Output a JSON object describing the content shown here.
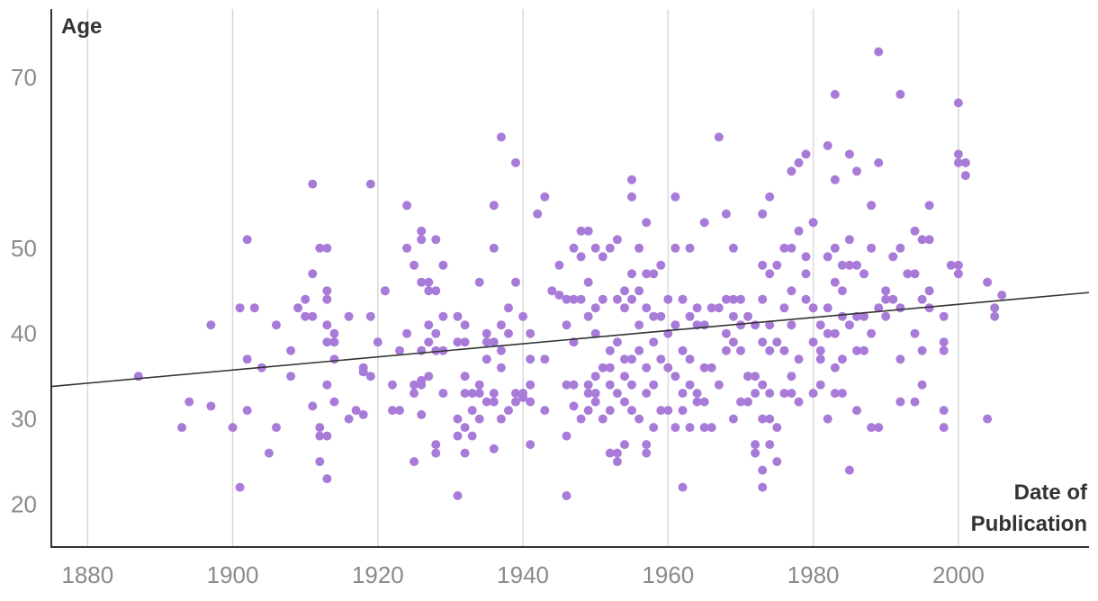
{
  "chart_data": {
    "type": "scatter",
    "title": "",
    "ylabel": "Age",
    "xlabel_lines": [
      "Date of",
      "Publication"
    ],
    "xlim": [
      1875,
      2018
    ],
    "ylim": [
      15,
      78
    ],
    "x_ticks": [
      1880,
      1900,
      1920,
      1940,
      1960,
      1980,
      2000
    ],
    "y_ticks": [
      20,
      30,
      40,
      50,
      70
    ],
    "grid": "vertical",
    "colors": {
      "points": "#a97bd8",
      "trend": "#333333",
      "grid": "#d9d9d9",
      "axis": "#333333"
    },
    "trendline": {
      "start": [
        1875,
        33.8
      ],
      "end": [
        2018,
        44.8
      ]
    },
    "points": [
      [
        1887,
        35
      ],
      [
        1893,
        29
      ],
      [
        1894,
        32
      ],
      [
        1897,
        41
      ],
      [
        1897,
        31.5
      ],
      [
        1900,
        29
      ],
      [
        1901,
        43
      ],
      [
        1901,
        22
      ],
      [
        1902,
        51
      ],
      [
        1902,
        37
      ],
      [
        1902,
        31
      ],
      [
        1903,
        43
      ],
      [
        1904,
        36
      ],
      [
        1905,
        26
      ],
      [
        1906,
        41
      ],
      [
        1906,
        29
      ],
      [
        1908,
        38
      ],
      [
        1908,
        35
      ],
      [
        1909,
        43
      ],
      [
        1910,
        44
      ],
      [
        1910,
        42
      ],
      [
        1911,
        47
      ],
      [
        1911,
        31.5
      ],
      [
        1911,
        57.5
      ],
      [
        1911,
        42
      ],
      [
        1912,
        50
      ],
      [
        1912,
        29
      ],
      [
        1912,
        28
      ],
      [
        1912,
        25
      ],
      [
        1913,
        50
      ],
      [
        1913,
        45
      ],
      [
        1913,
        44
      ],
      [
        1913,
        41
      ],
      [
        1913,
        39
      ],
      [
        1913,
        34
      ],
      [
        1913,
        28
      ],
      [
        1913,
        23
      ],
      [
        1914,
        40
      ],
      [
        1914,
        39
      ],
      [
        1914,
        37
      ],
      [
        1914,
        32
      ],
      [
        1916,
        42
      ],
      [
        1916,
        30
      ],
      [
        1917,
        31
      ],
      [
        1918,
        36
      ],
      [
        1918,
        35.5
      ],
      [
        1918,
        30.5
      ],
      [
        1919,
        57.5
      ],
      [
        1919,
        42
      ],
      [
        1919,
        35
      ],
      [
        1920,
        39
      ],
      [
        1921,
        45
      ],
      [
        1921,
        45
      ],
      [
        1922,
        34
      ],
      [
        1922,
        31
      ],
      [
        1923,
        38
      ],
      [
        1923,
        31
      ],
      [
        1924,
        40
      ],
      [
        1924,
        50
      ],
      [
        1924,
        55
      ],
      [
        1925,
        48
      ],
      [
        1925,
        34
      ],
      [
        1925,
        33
      ],
      [
        1925,
        25
      ],
      [
        1926,
        51
      ],
      [
        1926,
        52
      ],
      [
        1926,
        46
      ],
      [
        1926,
        38
      ],
      [
        1926,
        34.5
      ],
      [
        1926,
        34
      ],
      [
        1926,
        30.5
      ],
      [
        1927,
        41
      ],
      [
        1927,
        39
      ],
      [
        1927,
        46
      ],
      [
        1927,
        45
      ],
      [
        1927,
        35
      ],
      [
        1928,
        51
      ],
      [
        1928,
        45
      ],
      [
        1928,
        40
      ],
      [
        1928,
        38
      ],
      [
        1928,
        27
      ],
      [
        1928,
        26
      ],
      [
        1929,
        48
      ],
      [
        1929,
        42
      ],
      [
        1929,
        38
      ],
      [
        1929,
        33
      ],
      [
        1931,
        42
      ],
      [
        1931,
        39
      ],
      [
        1931,
        30
      ],
      [
        1931,
        28
      ],
      [
        1931,
        21
      ],
      [
        1932,
        41
      ],
      [
        1932,
        39
      ],
      [
        1932,
        35
      ],
      [
        1932,
        33
      ],
      [
        1932,
        29
      ],
      [
        1932,
        26
      ],
      [
        1933,
        33
      ],
      [
        1933,
        31
      ],
      [
        1933,
        28
      ],
      [
        1934,
        46
      ],
      [
        1934,
        34
      ],
      [
        1934,
        33
      ],
      [
        1934,
        30
      ],
      [
        1935,
        40
      ],
      [
        1935,
        39
      ],
      [
        1935,
        37
      ],
      [
        1935,
        32
      ],
      [
        1936,
        55
      ],
      [
        1936,
        50
      ],
      [
        1936,
        39
      ],
      [
        1936,
        33
      ],
      [
        1936,
        32
      ],
      [
        1936,
        26.5
      ],
      [
        1937,
        63
      ],
      [
        1937,
        41
      ],
      [
        1937,
        38
      ],
      [
        1937,
        36
      ],
      [
        1937,
        30
      ],
      [
        1938,
        43
      ],
      [
        1938,
        40
      ],
      [
        1938,
        31
      ],
      [
        1939,
        60
      ],
      [
        1939,
        46
      ],
      [
        1939,
        33
      ],
      [
        1939,
        32
      ],
      [
        1940,
        42
      ],
      [
        1940,
        33
      ],
      [
        1940,
        32.5
      ],
      [
        1941,
        40
      ],
      [
        1941,
        37
      ],
      [
        1941,
        34
      ],
      [
        1941,
        27
      ],
      [
        1941,
        32
      ],
      [
        1942,
        54
      ],
      [
        1943,
        56
      ],
      [
        1943,
        31
      ],
      [
        1943,
        37
      ],
      [
        1944,
        45
      ],
      [
        1945,
        44.5
      ],
      [
        1945,
        48
      ],
      [
        1946,
        41
      ],
      [
        1946,
        34
      ],
      [
        1946,
        28
      ],
      [
        1946,
        21
      ],
      [
        1946,
        44
      ],
      [
        1947,
        50
      ],
      [
        1947,
        44
      ],
      [
        1947,
        39
      ],
      [
        1947,
        34
      ],
      [
        1947,
        31.5
      ],
      [
        1948,
        52
      ],
      [
        1948,
        49
      ],
      [
        1948,
        44
      ],
      [
        1948,
        30
      ],
      [
        1949,
        52
      ],
      [
        1949,
        46
      ],
      [
        1949,
        42
      ],
      [
        1949,
        34
      ],
      [
        1949,
        33
      ],
      [
        1949,
        31
      ],
      [
        1950,
        50
      ],
      [
        1950,
        43
      ],
      [
        1950,
        40
      ],
      [
        1950,
        35
      ],
      [
        1950,
        33
      ],
      [
        1950,
        32
      ],
      [
        1951,
        49
      ],
      [
        1951,
        44
      ],
      [
        1951,
        36
      ],
      [
        1951,
        30
      ],
      [
        1952,
        50
      ],
      [
        1952,
        38
      ],
      [
        1952,
        36
      ],
      [
        1952,
        34
      ],
      [
        1952,
        31
      ],
      [
        1952,
        26
      ],
      [
        1953,
        51
      ],
      [
        1953,
        44
      ],
      [
        1953,
        39
      ],
      [
        1953,
        33
      ],
      [
        1953,
        25
      ],
      [
        1953,
        26
      ],
      [
        1954,
        45
      ],
      [
        1954,
        43
      ],
      [
        1954,
        37
      ],
      [
        1954,
        35
      ],
      [
        1954,
        32
      ],
      [
        1954,
        27
      ],
      [
        1955,
        58
      ],
      [
        1955,
        56
      ],
      [
        1955,
        47
      ],
      [
        1955,
        44
      ],
      [
        1955,
        37
      ],
      [
        1955,
        34
      ],
      [
        1955,
        31
      ],
      [
        1956,
        50
      ],
      [
        1956,
        45
      ],
      [
        1956,
        41
      ],
      [
        1956,
        38
      ],
      [
        1956,
        30
      ],
      [
        1957,
        53
      ],
      [
        1957,
        47
      ],
      [
        1957,
        43
      ],
      [
        1957,
        36
      ],
      [
        1957,
        33
      ],
      [
        1957,
        27
      ],
      [
        1957,
        26
      ],
      [
        1958,
        47
      ],
      [
        1958,
        42
      ],
      [
        1958,
        39
      ],
      [
        1958,
        34
      ],
      [
        1958,
        29
      ],
      [
        1959,
        48
      ],
      [
        1959,
        42
      ],
      [
        1959,
        37
      ],
      [
        1959,
        31
      ],
      [
        1960,
        44
      ],
      [
        1960,
        40
      ],
      [
        1960,
        36
      ],
      [
        1960,
        31
      ],
      [
        1961,
        56
      ],
      [
        1961,
        50
      ],
      [
        1961,
        41
      ],
      [
        1961,
        35
      ],
      [
        1961,
        29
      ],
      [
        1962,
        44
      ],
      [
        1962,
        38
      ],
      [
        1962,
        33
      ],
      [
        1962,
        22
      ],
      [
        1962,
        31
      ],
      [
        1963,
        50
      ],
      [
        1963,
        42
      ],
      [
        1963,
        37
      ],
      [
        1963,
        29
      ],
      [
        1963,
        34
      ],
      [
        1964,
        43
      ],
      [
        1964,
        41
      ],
      [
        1964,
        33
      ],
      [
        1964,
        32
      ],
      [
        1965,
        53
      ],
      [
        1965,
        41
      ],
      [
        1965,
        36
      ],
      [
        1965,
        32
      ],
      [
        1965,
        29
      ],
      [
        1966,
        43
      ],
      [
        1966,
        36
      ],
      [
        1966,
        29
      ],
      [
        1967,
        63
      ],
      [
        1967,
        43
      ],
      [
        1967,
        34
      ],
      [
        1968,
        54
      ],
      [
        1968,
        44
      ],
      [
        1968,
        40
      ],
      [
        1968,
        38
      ],
      [
        1969,
        50
      ],
      [
        1969,
        44
      ],
      [
        1969,
        42
      ],
      [
        1969,
        39
      ],
      [
        1969,
        30
      ],
      [
        1970,
        44
      ],
      [
        1970,
        41
      ],
      [
        1970,
        38
      ],
      [
        1970,
        32
      ],
      [
        1971,
        42
      ],
      [
        1971,
        35
      ],
      [
        1971,
        32
      ],
      [
        1972,
        41
      ],
      [
        1972,
        35
      ],
      [
        1972,
        33
      ],
      [
        1972,
        27
      ],
      [
        1972,
        26
      ],
      [
        1973,
        54
      ],
      [
        1973,
        48
      ],
      [
        1973,
        44
      ],
      [
        1973,
        39
      ],
      [
        1973,
        34
      ],
      [
        1973,
        30
      ],
      [
        1973,
        24
      ],
      [
        1973,
        22
      ],
      [
        1974,
        56
      ],
      [
        1974,
        47
      ],
      [
        1974,
        41
      ],
      [
        1974,
        38
      ],
      [
        1974,
        33
      ],
      [
        1974,
        30
      ],
      [
        1974,
        27
      ],
      [
        1975,
        48
      ],
      [
        1975,
        39
      ],
      [
        1975,
        29
      ],
      [
        1975,
        25
      ],
      [
        1976,
        50
      ],
      [
        1976,
        43
      ],
      [
        1976,
        38
      ],
      [
        1976,
        33
      ],
      [
        1977,
        59
      ],
      [
        1977,
        50
      ],
      [
        1977,
        45
      ],
      [
        1977,
        41
      ],
      [
        1977,
        35
      ],
      [
        1977,
        33
      ],
      [
        1978,
        60
      ],
      [
        1978,
        52
      ],
      [
        1978,
        37
      ],
      [
        1978,
        32
      ],
      [
        1979,
        61
      ],
      [
        1979,
        49
      ],
      [
        1979,
        47
      ],
      [
        1979,
        44
      ],
      [
        1980,
        53
      ],
      [
        1980,
        43
      ],
      [
        1980,
        39
      ],
      [
        1980,
        33
      ],
      [
        1981,
        41
      ],
      [
        1981,
        38
      ],
      [
        1981,
        37
      ],
      [
        1981,
        34
      ],
      [
        1982,
        62
      ],
      [
        1982,
        49
      ],
      [
        1982,
        43
      ],
      [
        1982,
        40
      ],
      [
        1982,
        30
      ],
      [
        1983,
        68
      ],
      [
        1983,
        58
      ],
      [
        1983,
        50
      ],
      [
        1983,
        46
      ],
      [
        1983,
        40
      ],
      [
        1983,
        36
      ],
      [
        1983,
        33
      ],
      [
        1984,
        48
      ],
      [
        1984,
        45
      ],
      [
        1984,
        42
      ],
      [
        1984,
        37
      ],
      [
        1984,
        33
      ],
      [
        1985,
        61
      ],
      [
        1985,
        51
      ],
      [
        1985,
        48
      ],
      [
        1985,
        41
      ],
      [
        1985,
        24
      ],
      [
        1986,
        59
      ],
      [
        1986,
        48
      ],
      [
        1986,
        42
      ],
      [
        1986,
        38
      ],
      [
        1986,
        31
      ],
      [
        1987,
        47
      ],
      [
        1987,
        42
      ],
      [
        1987,
        38
      ],
      [
        1988,
        55
      ],
      [
        1988,
        50
      ],
      [
        1988,
        40
      ],
      [
        1988,
        29
      ],
      [
        1989,
        73
      ],
      [
        1989,
        60
      ],
      [
        1989,
        43
      ],
      [
        1989,
        29
      ],
      [
        1990,
        45
      ],
      [
        1990,
        44
      ],
      [
        1990,
        42
      ],
      [
        1991,
        49
      ],
      [
        1991,
        44
      ],
      [
        1992,
        68
      ],
      [
        1992,
        50
      ],
      [
        1992,
        43
      ],
      [
        1992,
        37
      ],
      [
        1992,
        32
      ],
      [
        1993,
        47
      ],
      [
        1994,
        52
      ],
      [
        1994,
        47
      ],
      [
        1994,
        40
      ],
      [
        1994,
        32
      ],
      [
        1995,
        51
      ],
      [
        1995,
        44
      ],
      [
        1995,
        38
      ],
      [
        1995,
        34
      ],
      [
        1996,
        55
      ],
      [
        1996,
        51
      ],
      [
        1996,
        45
      ],
      [
        1996,
        43
      ],
      [
        1998,
        42
      ],
      [
        1998,
        39
      ],
      [
        1998,
        38
      ],
      [
        1998,
        31
      ],
      [
        1998,
        29
      ],
      [
        1999,
        48
      ],
      [
        2000,
        67
      ],
      [
        2000,
        61
      ],
      [
        2000,
        60
      ],
      [
        2000,
        48
      ],
      [
        2000,
        47
      ],
      [
        2001,
        60
      ],
      [
        2001,
        58.5
      ],
      [
        2004,
        46
      ],
      [
        2004,
        30
      ],
      [
        2005,
        43
      ],
      [
        2005,
        42
      ],
      [
        2006,
        44.5
      ]
    ]
  }
}
